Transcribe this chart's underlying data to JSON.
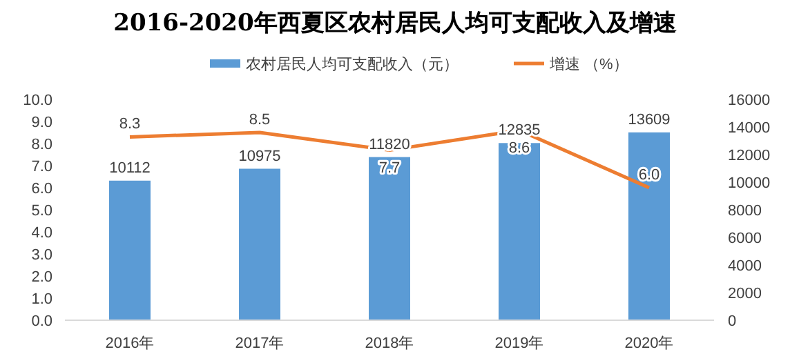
{
  "chart_data": {
    "type": "bar",
    "title": "2016-2020年西夏区农村居民人均可支配收入及增速",
    "categories": [
      "2016年",
      "2017年",
      "2018年",
      "2019年",
      "2020年"
    ],
    "series": [
      {
        "name": "农村居民人均可支配收入（元）",
        "axis": "y2",
        "color": "#5b9bd5",
        "values": [
          10112,
          10975,
          11820,
          12835,
          13609
        ]
      },
      {
        "name": "增速 （%）",
        "type": "line",
        "axis": "y",
        "color": "#ed7d31",
        "values": [
          8.3,
          8.5,
          7.7,
          8.6,
          6.0
        ],
        "value_labels": [
          "8.3",
          "8.5",
          "7.7",
          "8.6",
          "6.0"
        ]
      }
    ],
    "ylim": [
      0,
      10
    ],
    "yticks": [
      {
        "value": 0,
        "label": "0.0"
      },
      {
        "value": 1,
        "label": "1.0"
      },
      {
        "value": 2,
        "label": "2.0"
      },
      {
        "value": 3,
        "label": "3.0"
      },
      {
        "value": 4,
        "label": "4.0"
      },
      {
        "value": 5,
        "label": "5.0"
      },
      {
        "value": 6,
        "label": "6.0"
      },
      {
        "value": 7,
        "label": "7.0"
      },
      {
        "value": 8,
        "label": "8.0"
      },
      {
        "value": 9,
        "label": "9.0"
      },
      {
        "value": 10,
        "label": "10.0"
      }
    ],
    "y2lim": [
      0,
      16000
    ],
    "y2ticks": [
      0,
      2000,
      4000,
      6000,
      8000,
      10000,
      12000,
      14000,
      16000
    ],
    "data_labels": true,
    "legend": "top",
    "grid": false,
    "marker": "none",
    "line_style": "solid"
  }
}
